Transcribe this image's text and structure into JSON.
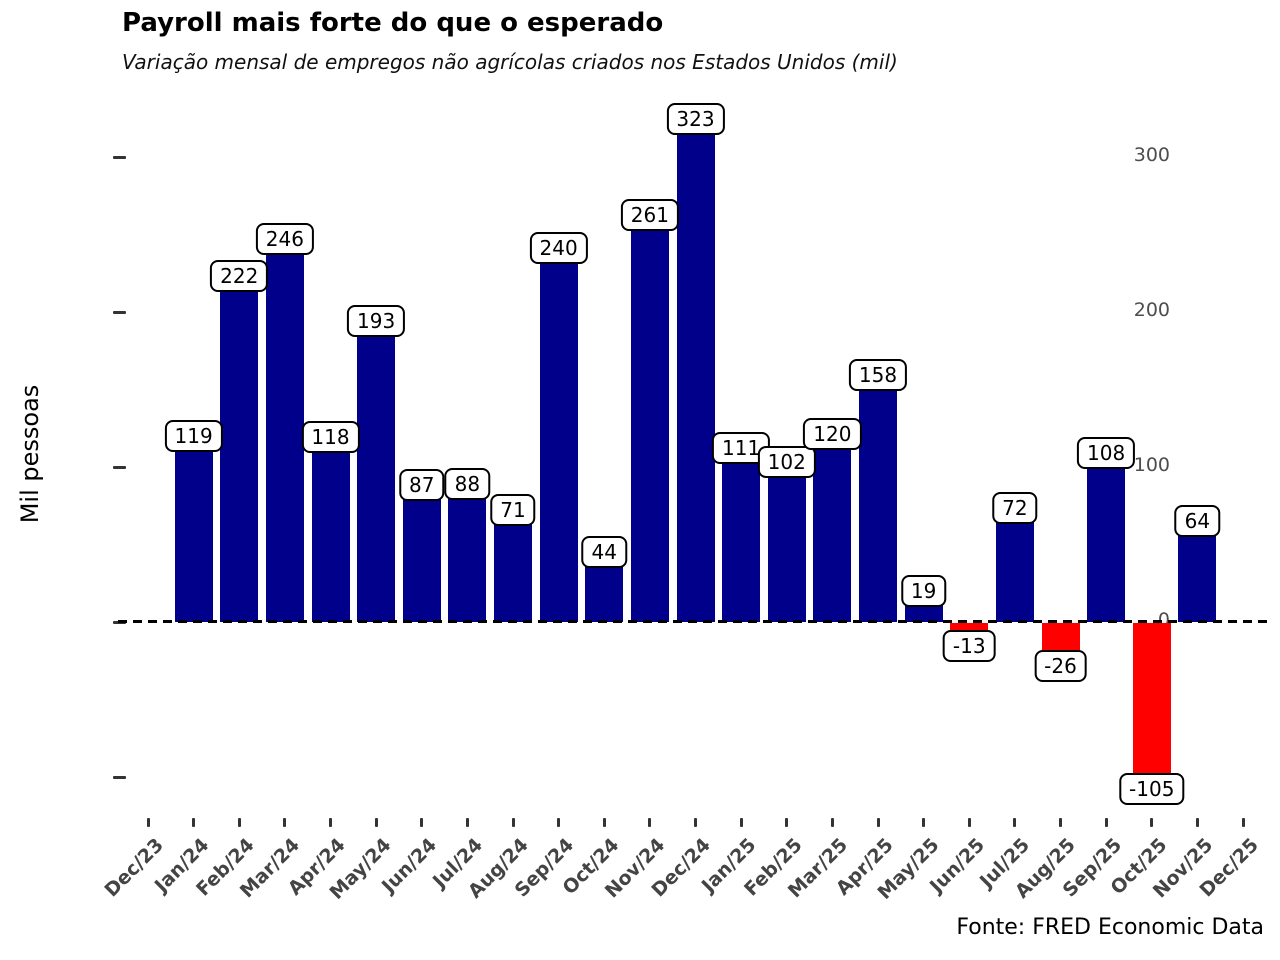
{
  "chart_data": {
    "type": "bar",
    "title": "Payroll mais forte do que o esperado",
    "subtitle": "Variação mensal de empregos não agrícolas criados nos Estados Unidos (mil)",
    "ylabel": "Mil pessoas",
    "xlabel": "",
    "source": "Fonte: FRED Economic Data",
    "categories": [
      "Dec/23",
      "Jan/24",
      "Feb/24",
      "Mar/24",
      "Apr/24",
      "May/24",
      "Jun/24",
      "Jul/24",
      "Aug/24",
      "Sep/24",
      "Oct/24",
      "Nov/24",
      "Dec/24",
      "Jan/25",
      "Feb/25",
      "Mar/25",
      "Apr/25",
      "May/25",
      "Jun/25",
      "Jul/25",
      "Aug/25",
      "Sep/25",
      "Oct/25",
      "Nov/25",
      "Dec/25"
    ],
    "values": [
      null,
      119,
      222,
      246,
      118,
      193,
      87,
      88,
      71,
      240,
      44,
      261,
      323,
      111,
      102,
      120,
      158,
      19,
      -13,
      72,
      -26,
      108,
      -105,
      64,
      null
    ],
    "yticks": [
      -100,
      0,
      100,
      200,
      300
    ],
    "ylim": [
      -130,
      340
    ],
    "grid": false,
    "legend": null,
    "zero_line_style": "dashed",
    "colors": {
      "positive_bar": "#00008B",
      "negative_bar": "#FF0000",
      "tick_label": "#4d4d4d",
      "background": "#ffffff"
    }
  }
}
